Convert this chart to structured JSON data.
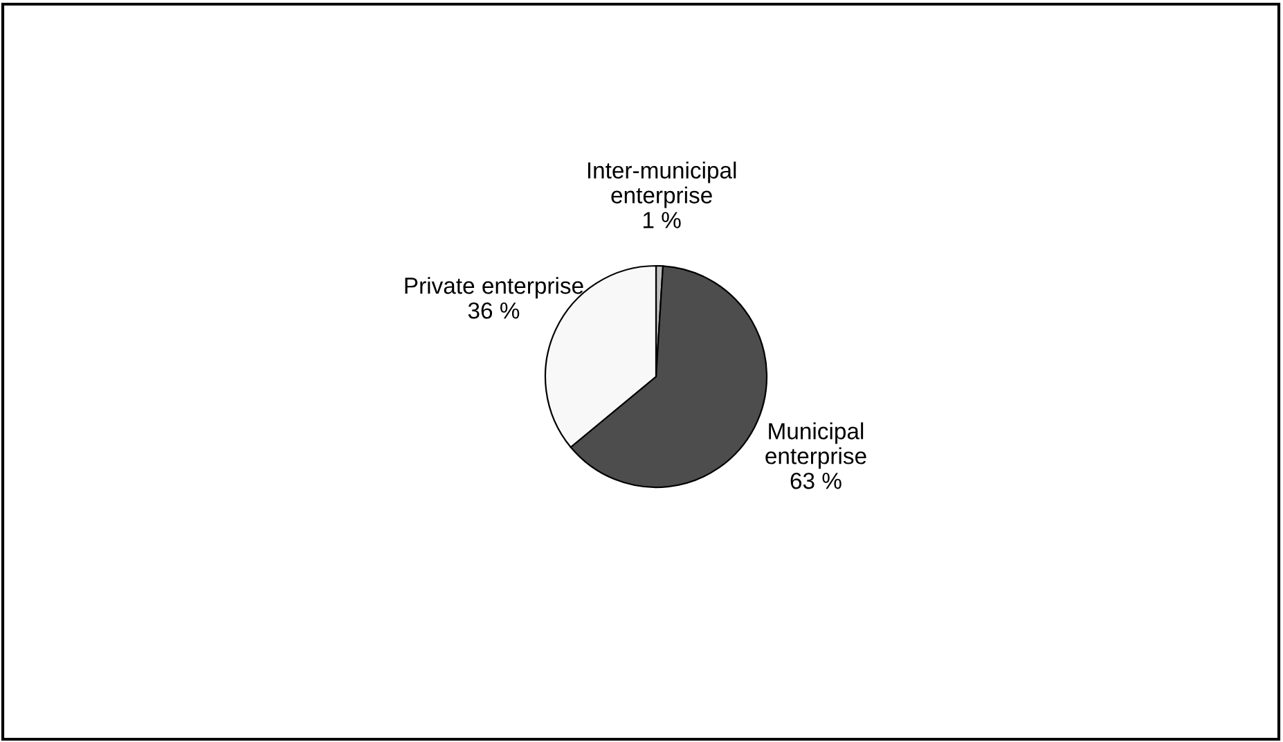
{
  "chart_data": {
    "type": "pie",
    "categories": [
      "Inter-municipal\nenterprise",
      "Municipal\nenterprise",
      "Private enterprise"
    ],
    "values": [
      1,
      63,
      36
    ],
    "value_labels": [
      "1 %",
      "63 %",
      "36 %"
    ],
    "colors": [
      "#c0c0c0",
      "#4d4d4d",
      "#f8f8f8"
    ],
    "legend": false
  }
}
